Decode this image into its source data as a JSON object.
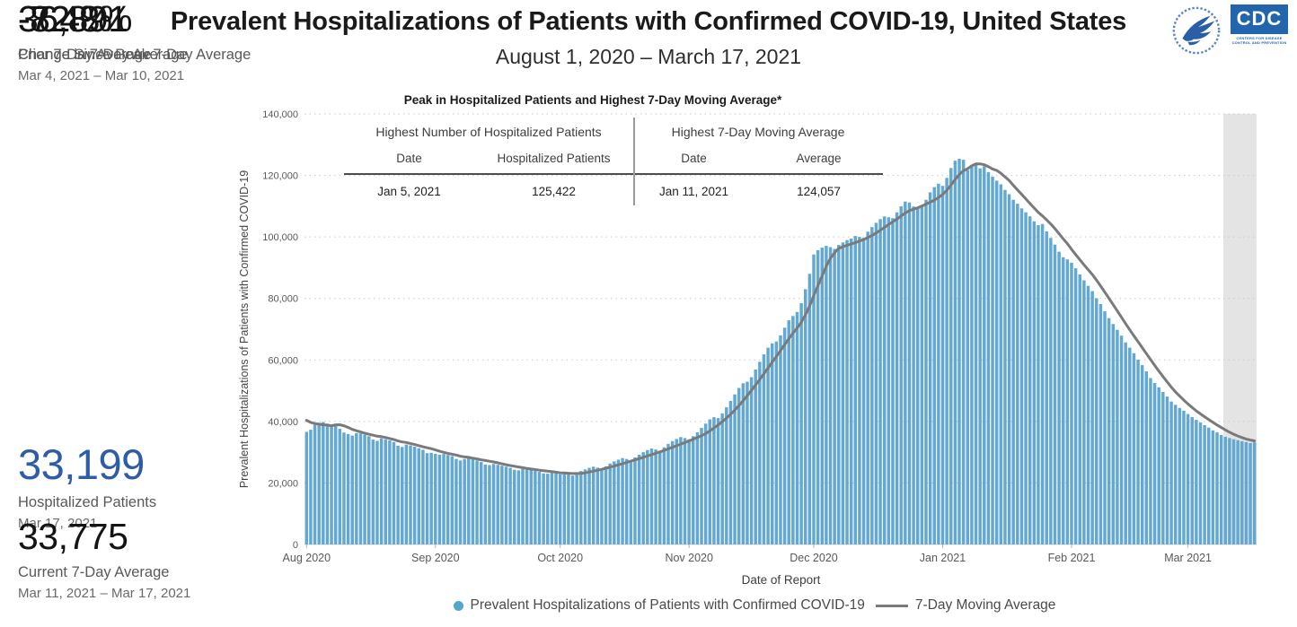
{
  "header": {
    "title": "Prevalent Hospitalizations of Patients with Confirmed COVID-19, United States",
    "subtitle": "August 1, 2020 – March 17, 2021",
    "logo": {
      "hhs_icon": "hhs-eagle-seal",
      "cdc_label": "CDC",
      "cdc_subtext": "CENTERS FOR DISEASE CONTROL AND PREVENTION"
    }
  },
  "stats": [
    {
      "value": "33,199",
      "label": "Hospitalized Patients",
      "sublabel": "Mar 17, 2021"
    },
    {
      "value": "33,775",
      "label": "Current 7-Day Average",
      "sublabel": "Mar 11, 2021 – Mar 17, 2021"
    },
    {
      "value": "36,891",
      "label": "Prior 7-Day Average",
      "sublabel": "Mar 4, 2021 – Mar 10, 2021"
    },
    {
      "value": "-8.4%",
      "label": "Change in 7-Day Average",
      "sublabel": ""
    },
    {
      "value": "-72.8%",
      "label": "Change Since Peak 7-Day Average",
      "sublabel": ""
    }
  ],
  "inset_table": {
    "title": "Peak in Hospitalized Patients and Highest 7-Day Moving Average*",
    "groups": [
      {
        "header": "Highest Number of Hospitalized Patients",
        "columns": [
          "Date",
          "Hospitalized Patients"
        ],
        "row": [
          "Jan 5, 2021",
          "125,422"
        ]
      },
      {
        "header": "Highest 7-Day Moving Average",
        "columns": [
          "Date",
          "Average"
        ],
        "row": [
          "Jan 11, 2021",
          "124,057"
        ]
      }
    ]
  },
  "legend": {
    "bars_label": "Prevalent Hospitalizations of Patients with Confirmed COVID-19",
    "ma_label": "7-Day Moving Average"
  },
  "chart_data": {
    "type": "bar",
    "x_start": "2020-08-01",
    "x_end": "2021-03-17",
    "xlabel": "Date of Report",
    "ylabel": "Prevalent Hospitalizations of Patients with Confirmed COVID-19",
    "ylim": [
      0,
      140000
    ],
    "grid": "horizontal-dotted",
    "unit_multiplier": 1000,
    "y_axis": {
      "ticks": [
        {
          "value": 0,
          "label": "0"
        },
        {
          "value": 20000,
          "label": "20,000"
        },
        {
          "value": 40000,
          "label": "40,000"
        },
        {
          "value": 60000,
          "label": "60,000"
        },
        {
          "value": 80000,
          "label": "80,000"
        },
        {
          "value": 100000,
          "label": "100,000"
        },
        {
          "value": 120000,
          "label": "120,000"
        },
        {
          "value": 140000,
          "label": "140,000"
        }
      ]
    },
    "x_axis": {
      "ticks": [
        {
          "day": 0,
          "label": "Aug 2020"
        },
        {
          "day": 31,
          "label": "Sep 2020"
        },
        {
          "day": 61,
          "label": "Oct 2020"
        },
        {
          "day": 92,
          "label": "Nov 2020"
        },
        {
          "day": 122,
          "label": "Dec 2020"
        },
        {
          "day": 153,
          "label": "Jan 2021"
        },
        {
          "day": 184,
          "label": "Feb 2021"
        },
        {
          "day": 212,
          "label": "Mar 2021"
        }
      ]
    },
    "series_names": [
      "Prevalent Hospitalizations of Patients with Confirmed COVID-19",
      "7-Day Moving Average"
    ],
    "peak_annotation": {
      "date": "Jan 5, 2021",
      "value": 125422
    },
    "ma_peak_annotation": {
      "date": "Jan 11, 2021",
      "value": 124057
    },
    "latest_annotation": {
      "date": "Mar 17, 2021",
      "value": 33199
    },
    "shaded_region": {
      "from_day_index": 221
    },
    "colors": {
      "bar": "#62a8d2",
      "ma_line": "#7a7a7a",
      "shaded_band": "#e4e4e4",
      "grid": "#c9c9c9",
      "axis_text": "#595959"
    },
    "ma_seed_prior_week_thousands": [
      42.2,
      41.9,
      41.6,
      41.2,
      40.8,
      40.4,
      40.0
    ],
    "daily_values_thousands": [
      36.6,
      37.3,
      38.9,
      39.6,
      39.8,
      39.3,
      38.9,
      38.5,
      37.6,
      36.4,
      35.9,
      35.4,
      36.2,
      36.1,
      35.7,
      35.2,
      34.1,
      33.7,
      34.5,
      34.2,
      33.8,
      33.3,
      32.1,
      31.7,
      32.5,
      32.2,
      31.8,
      31.3,
      30.8,
      29.7,
      29.8,
      29.5,
      29.2,
      29.4,
      29.1,
      28.7,
      27.8,
      27.3,
      27.8,
      28.1,
      27.7,
      27.3,
      26.8,
      26.0,
      25.8,
      26.2,
      25.9,
      25.6,
      25.3,
      24.9,
      24.3,
      24.1,
      24.6,
      24.4,
      24.2,
      23.9,
      23.6,
      23.1,
      23.0,
      23.5,
      23.3,
      22.8,
      23.4,
      23.1,
      22.4,
      22.9,
      23.9,
      24.4,
      24.9,
      25.3,
      25.0,
      24.6,
      25.4,
      26.3,
      27.0,
      27.6,
      28.1,
      27.8,
      27.4,
      28.3,
      29.2,
      30.0,
      30.7,
      31.2,
      30.9,
      30.5,
      31.6,
      32.7,
      33.6,
      34.3,
      34.9,
      34.6,
      34.2,
      35.2,
      36.5,
      37.9,
      39.3,
      40.7,
      41.4,
      41.1,
      42.6,
      44.6,
      46.7,
      48.8,
      50.9,
      52.4,
      52.9,
      54.4,
      56.9,
      59.4,
      61.8,
      64.0,
      65.4,
      66.0,
      68.0,
      70.5,
      72.9,
      74.3,
      75.6,
      78.5,
      83.0,
      88.0,
      94.3,
      95.7,
      96.5,
      97.1,
      96.7,
      96.1,
      97.4,
      98.2,
      99.0,
      99.5,
      100.3,
      100.0,
      99.7,
      101.7,
      103.2,
      104.6,
      105.8,
      106.7,
      106.4,
      106.1,
      108.0,
      110.0,
      111.5,
      111.2,
      109.9,
      109.6,
      110.3,
      112.1,
      114.5,
      116.2,
      117.3,
      116.6,
      119.2,
      122.4,
      124.8,
      125.422,
      125.1,
      121.7,
      123.3,
      123.7,
      122.3,
      123.0,
      121.1,
      119.6,
      118.3,
      117.1,
      115.3,
      113.9,
      112.1,
      110.8,
      109.3,
      108.0,
      106.7,
      105.1,
      103.8,
      104.2,
      101.8,
      99.7,
      97.5,
      95.2,
      93.4,
      92.7,
      91.6,
      89.8,
      87.8,
      85.9,
      84.1,
      82.4,
      80.1,
      78.2,
      75.8,
      73.6,
      71.7,
      69.8,
      67.9,
      65.7,
      64.0,
      62.2,
      60.1,
      58.3,
      56.3,
      54.1,
      52.5,
      51.1,
      49.6,
      48.1,
      46.5,
      45.4,
      44.4,
      43.5,
      42.4,
      41.4,
      40.5,
      39.7,
      38.8,
      38.0,
      37.1,
      36.5,
      35.6,
      35.0,
      34.6,
      34.2,
      33.9,
      33.6,
      33.3,
      33.0,
      33.2
    ]
  }
}
